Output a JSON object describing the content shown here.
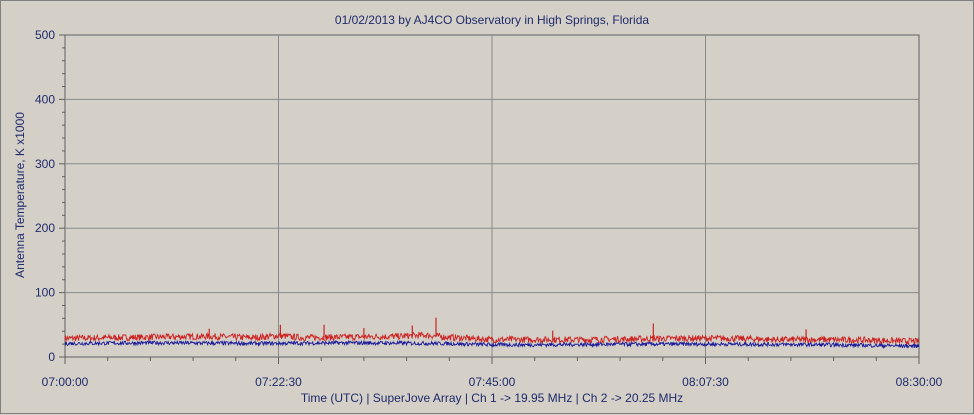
{
  "chart_data": {
    "type": "line",
    "title": "01/02/2013  by  AJ4CO Observatory  in  High Springs, Florida",
    "xlabel": "Time (UTC)   |   SuperJove Array   |   Ch 1 -> 19.95 MHz   |   Ch 2 -> 20.25 MHz",
    "ylabel": "Antenna Temperature, K x1000",
    "x_tick_labels": [
      "07:00:00",
      "07:22:30",
      "07:45:00",
      "08:07:30",
      "08:30:00"
    ],
    "y_ticks": [
      0,
      100,
      200,
      300,
      400,
      500
    ],
    "xlim_minutes": [
      0,
      90
    ],
    "ylim": [
      0,
      500
    ],
    "grid": true,
    "series": [
      {
        "color": "#cc2222",
        "x_minutes": [
          0,
          5,
          10,
          15,
          20,
          22.5,
          25,
          30,
          35,
          38,
          40,
          45,
          50,
          55,
          60,
          65,
          70,
          75,
          80,
          85,
          90
        ],
        "values": [
          29,
          30,
          31,
          32,
          30,
          33,
          30,
          31,
          32,
          34,
          31,
          27,
          27,
          27,
          28,
          29,
          29,
          27,
          27,
          26,
          24
        ],
        "peaks": [
          {
            "x_minutes": 22.7,
            "value": 50
          },
          {
            "x_minutes": 27.3,
            "value": 50
          },
          {
            "x_minutes": 36.6,
            "value": 49
          },
          {
            "x_minutes": 39.1,
            "value": 61
          },
          {
            "x_minutes": 15.2,
            "value": 44
          },
          {
            "x_minutes": 31.5,
            "value": 45
          },
          {
            "x_minutes": 51.4,
            "value": 41
          },
          {
            "x_minutes": 62.0,
            "value": 52
          },
          {
            "x_minutes": 78.1,
            "value": 43
          }
        ]
      },
      {
        "color": "#1a1a99",
        "x_minutes": [
          0,
          10,
          20,
          30,
          40,
          45,
          50,
          60,
          70,
          80,
          90
        ],
        "values": [
          21,
          22,
          21,
          22,
          21,
          19,
          19,
          20,
          20,
          19,
          17
        ]
      }
    ]
  },
  "colors": {
    "background": "#d4d0c8",
    "plot_area": "#d4d0c8",
    "grid": "#8a8a8a",
    "text": "#1f2a6b",
    "axis": "#606060"
  }
}
